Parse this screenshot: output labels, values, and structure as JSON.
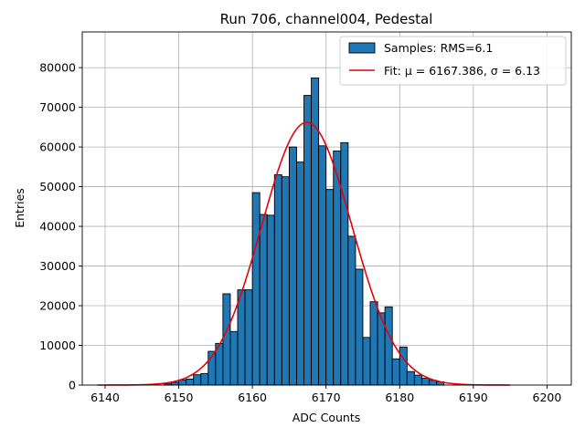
{
  "chart_data": {
    "type": "bar",
    "title": "Run 706, channel004, Pedestal",
    "xlabel": "ADC Counts",
    "ylabel": "Entries",
    "xlim": [
      6136.9,
      6203.3
    ],
    "ylim": [
      0,
      89000
    ],
    "xticks": [
      6140,
      6150,
      6160,
      6170,
      6180,
      6190,
      6200
    ],
    "yticks": [
      0,
      10000,
      20000,
      30000,
      40000,
      50000,
      60000,
      70000,
      80000
    ],
    "grid": true,
    "legend_position": "top-right",
    "histogram": {
      "name": "Samples: RMS=6.1",
      "color": "#1f77b4",
      "bin_edges": [
        6148,
        6149,
        6150,
        6151,
        6152,
        6153,
        6154,
        6155,
        6156,
        6157,
        6158,
        6159,
        6160,
        6161,
        6162,
        6163,
        6164,
        6165,
        6166,
        6167,
        6168,
        6169,
        6170,
        6171,
        6172,
        6173,
        6174,
        6175,
        6176,
        6177,
        6178,
        6179,
        6180,
        6181,
        6182,
        6183,
        6184,
        6185,
        6186,
        6187
      ],
      "counts": [
        300,
        700,
        1300,
        1500,
        2600,
        2900,
        8500,
        10500,
        23000,
        13500,
        24000,
        24000,
        48500,
        43000,
        42800,
        53000,
        52500,
        60000,
        56200,
        73000,
        77400,
        60300,
        49300,
        59000,
        61100,
        37500,
        29200,
        12000,
        21000,
        18200,
        19700,
        6600,
        9600,
        3400,
        2500,
        1700,
        1200,
        800,
        0
      ]
    },
    "fit": {
      "name": "Fit: μ = 6167.386, σ = 6.13",
      "color": "#e8000b",
      "mu": 6167.386,
      "sigma": 6.13,
      "amplitude": 66200,
      "x_range": [
        6139,
        6195
      ]
    }
  }
}
